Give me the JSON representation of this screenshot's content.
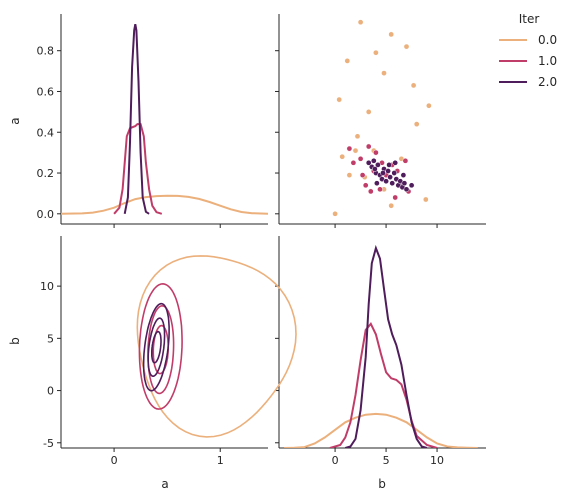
{
  "legend": {
    "title": "Iter",
    "position": "upper-right"
  },
  "colors": {
    "0.0": "#ebb07c",
    "1.0": "#c03d69",
    "2.0": "#4f1d5b"
  },
  "chart_data": {
    "type": "pairplot",
    "variables": [
      "a",
      "b"
    ],
    "hue": "Iter",
    "hue_levels": [
      "0.0",
      "1.0",
      "2.0"
    ],
    "axes": {
      "a": {
        "label": "a",
        "lim": [
          -0.5,
          1.45
        ],
        "ticks": [
          0,
          1
        ],
        "ticks_diag": [
          0.0,
          0.2,
          0.4,
          0.6,
          0.8
        ],
        "tick_labels_diag": [
          "0.0",
          "0.2",
          "0.4",
          "0.6",
          "0.8"
        ]
      },
      "b": {
        "label": "b",
        "lim": [
          -5.5,
          14.8
        ],
        "ticks": [
          -5,
          0,
          5,
          10
        ],
        "ticks_x": [
          0,
          5,
          10
        ]
      }
    },
    "diag_lim": [
      -0.05,
      0.98
    ],
    "kde_a": {
      "type": "line",
      "series": [
        {
          "name": "0.0",
          "x": [
            -0.5,
            -0.3,
            -0.2,
            -0.1,
            0.0,
            0.1,
            0.2,
            0.3,
            0.4,
            0.5,
            0.6,
            0.7,
            0.8,
            0.9,
            1.0,
            1.1,
            1.2,
            1.3,
            1.45
          ],
          "y": [
            0.0,
            0.002,
            0.006,
            0.015,
            0.03,
            0.053,
            0.072,
            0.082,
            0.087,
            0.089,
            0.088,
            0.083,
            0.073,
            0.058,
            0.04,
            0.022,
            0.009,
            0.003,
            0.0
          ]
        },
        {
          "name": "1.0",
          "x": [
            0.0,
            0.05,
            0.08,
            0.1,
            0.12,
            0.15,
            0.2,
            0.22,
            0.25,
            0.28,
            0.3,
            0.33,
            0.36,
            0.4,
            0.45
          ],
          "y": [
            0.0,
            0.03,
            0.12,
            0.25,
            0.38,
            0.42,
            0.43,
            0.44,
            0.44,
            0.38,
            0.25,
            0.12,
            0.04,
            0.008,
            0.0
          ]
        },
        {
          "name": "2.0",
          "x": [
            0.1,
            0.13,
            0.15,
            0.17,
            0.19,
            0.2,
            0.21,
            0.23,
            0.25,
            0.27,
            0.3,
            0.33
          ],
          "y": [
            0.0,
            0.08,
            0.35,
            0.72,
            0.9,
            0.93,
            0.9,
            0.65,
            0.3,
            0.08,
            0.01,
            0.0
          ]
        }
      ]
    },
    "kde_b": {
      "type": "line",
      "series": [
        {
          "name": "0.0",
          "x": [
            -5,
            -4,
            -3,
            -2,
            -1,
            0,
            1,
            2,
            3,
            4,
            5,
            6,
            7,
            8,
            9,
            10,
            11,
            12,
            13,
            14
          ],
          "y": [
            0.0,
            0.002,
            0.006,
            0.03,
            0.07,
            0.12,
            0.17,
            0.2,
            0.22,
            0.225,
            0.22,
            0.2,
            0.17,
            0.12,
            0.07,
            0.03,
            0.01,
            0.004,
            0.001,
            0.0
          ]
        },
        {
          "name": "1.0",
          "x": [
            -0.5,
            0.5,
            1.0,
            1.5,
            2.0,
            2.5,
            3.0,
            3.5,
            4.0,
            4.5,
            5.0,
            5.5,
            6.0,
            6.5,
            7.0,
            7.5,
            8.0,
            9.0,
            10.0
          ],
          "y": [
            0.0,
            0.02,
            0.07,
            0.17,
            0.35,
            0.58,
            0.78,
            0.82,
            0.75,
            0.62,
            0.5,
            0.46,
            0.45,
            0.42,
            0.32,
            0.18,
            0.08,
            0.02,
            0.0
          ]
        },
        {
          "name": "2.0",
          "x": [
            1.0,
            1.5,
            2.0,
            2.5,
            3.0,
            3.3,
            3.6,
            4.0,
            4.4,
            4.8,
            5.2,
            5.6,
            6.0,
            6.5,
            7.0,
            7.5,
            8.0,
            8.5,
            9.0
          ],
          "y": [
            0.0,
            0.01,
            0.06,
            0.25,
            0.6,
            0.95,
            1.22,
            1.32,
            1.25,
            1.05,
            0.85,
            0.75,
            0.68,
            0.55,
            0.35,
            0.17,
            0.06,
            0.01,
            0.0
          ]
        }
      ]
    },
    "scatter_b_vs_a": {
      "type": "scatter",
      "series": [
        {
          "name": "0.0",
          "points": [
            [
              2.5,
              0.94
            ],
            [
              5.5,
              0.88
            ],
            [
              7.0,
              0.82
            ],
            [
              1.2,
              0.75
            ],
            [
              4.0,
              0.79
            ],
            [
              4.8,
              0.69
            ],
            [
              7.7,
              0.63
            ],
            [
              0.4,
              0.56
            ],
            [
              9.2,
              0.53
            ],
            [
              3.3,
              0.5
            ],
            [
              8.0,
              0.44
            ],
            [
              2.2,
              0.38
            ],
            [
              0.7,
              0.28
            ],
            [
              1.4,
              0.19
            ],
            [
              2.9,
              0.18
            ],
            [
              5.5,
              0.04
            ],
            [
              8.9,
              0.07
            ],
            [
              0.0,
              0.0
            ],
            [
              3.8,
              0.31
            ],
            [
              6.5,
              0.27
            ],
            [
              4.8,
              0.12
            ],
            [
              2.0,
              0.31
            ]
          ]
        },
        {
          "name": "1.0",
          "points": [
            [
              1.4,
              0.32
            ],
            [
              1.8,
              0.25
            ],
            [
              2.5,
              0.27
            ],
            [
              3.0,
              0.14
            ],
            [
              3.3,
              0.33
            ],
            [
              4.0,
              0.3
            ],
            [
              4.6,
              0.25
            ],
            [
              3.8,
              0.21
            ],
            [
              5.0,
              0.19
            ],
            [
              5.6,
              0.24
            ],
            [
              6.1,
              0.21
            ],
            [
              6.6,
              0.15
            ],
            [
              7.2,
              0.11
            ],
            [
              6.9,
              0.26
            ],
            [
              4.4,
              0.12
            ],
            [
              3.5,
              0.11
            ],
            [
              2.7,
              0.19
            ],
            [
              5.9,
              0.08
            ]
          ]
        },
        {
          "name": "2.0",
          "points": [
            [
              3.3,
              0.25
            ],
            [
              3.6,
              0.23
            ],
            [
              3.8,
              0.26
            ],
            [
              4.0,
              0.2
            ],
            [
              4.2,
              0.24
            ],
            [
              4.4,
              0.19
            ],
            [
              4.6,
              0.17
            ],
            [
              4.8,
              0.22
            ],
            [
              5.0,
              0.16
            ],
            [
              5.2,
              0.21
            ],
            [
              5.4,
              0.18
            ],
            [
              5.6,
              0.15
            ],
            [
              5.8,
              0.2
            ],
            [
              6.0,
              0.17
            ],
            [
              6.2,
              0.14
            ],
            [
              6.4,
              0.16
            ],
            [
              6.6,
              0.13
            ],
            [
              6.8,
              0.15
            ],
            [
              7.0,
              0.12
            ],
            [
              7.5,
              0.14
            ],
            [
              3.9,
              0.22
            ],
            [
              4.7,
              0.2
            ],
            [
              5.3,
              0.24
            ],
            [
              6.7,
              0.19
            ],
            [
              4.1,
              0.15
            ],
            [
              5.9,
              0.25
            ]
          ]
        }
      ]
    },
    "kde2d_a_vs_b": {
      "type": "contour",
      "series": [
        {
          "name": "0.0",
          "contours": [
            {
              "center": [
                0.47,
                4.6
              ],
              "rx": 0.74,
              "ry": 8.6,
              "rot": 0,
              "wobble": 0.06
            }
          ]
        },
        {
          "name": "1.0",
          "contours": [
            {
              "center": [
                0.22,
                4.3
              ],
              "rx": 0.2,
              "ry": 6.0,
              "rot": 2
            },
            {
              "center": [
                0.22,
                4.0
              ],
              "rx": 0.12,
              "ry": 4.2,
              "rot": 2
            },
            {
              "center": [
                0.22,
                4.0
              ],
              "rx": 0.07,
              "ry": 2.3,
              "rot": 2
            }
          ]
        },
        {
          "name": "2.0",
          "contours": [
            {
              "center": [
                0.2,
                4.4
              ],
              "rx": 0.11,
              "ry": 4.2,
              "rot": 7
            },
            {
              "center": [
                0.2,
                4.4
              ],
              "rx": 0.07,
              "ry": 2.8,
              "rot": 7
            },
            {
              "center": [
                0.2,
                4.4
              ],
              "rx": 0.04,
              "ry": 1.5,
              "rot": 7
            }
          ]
        }
      ]
    }
  }
}
